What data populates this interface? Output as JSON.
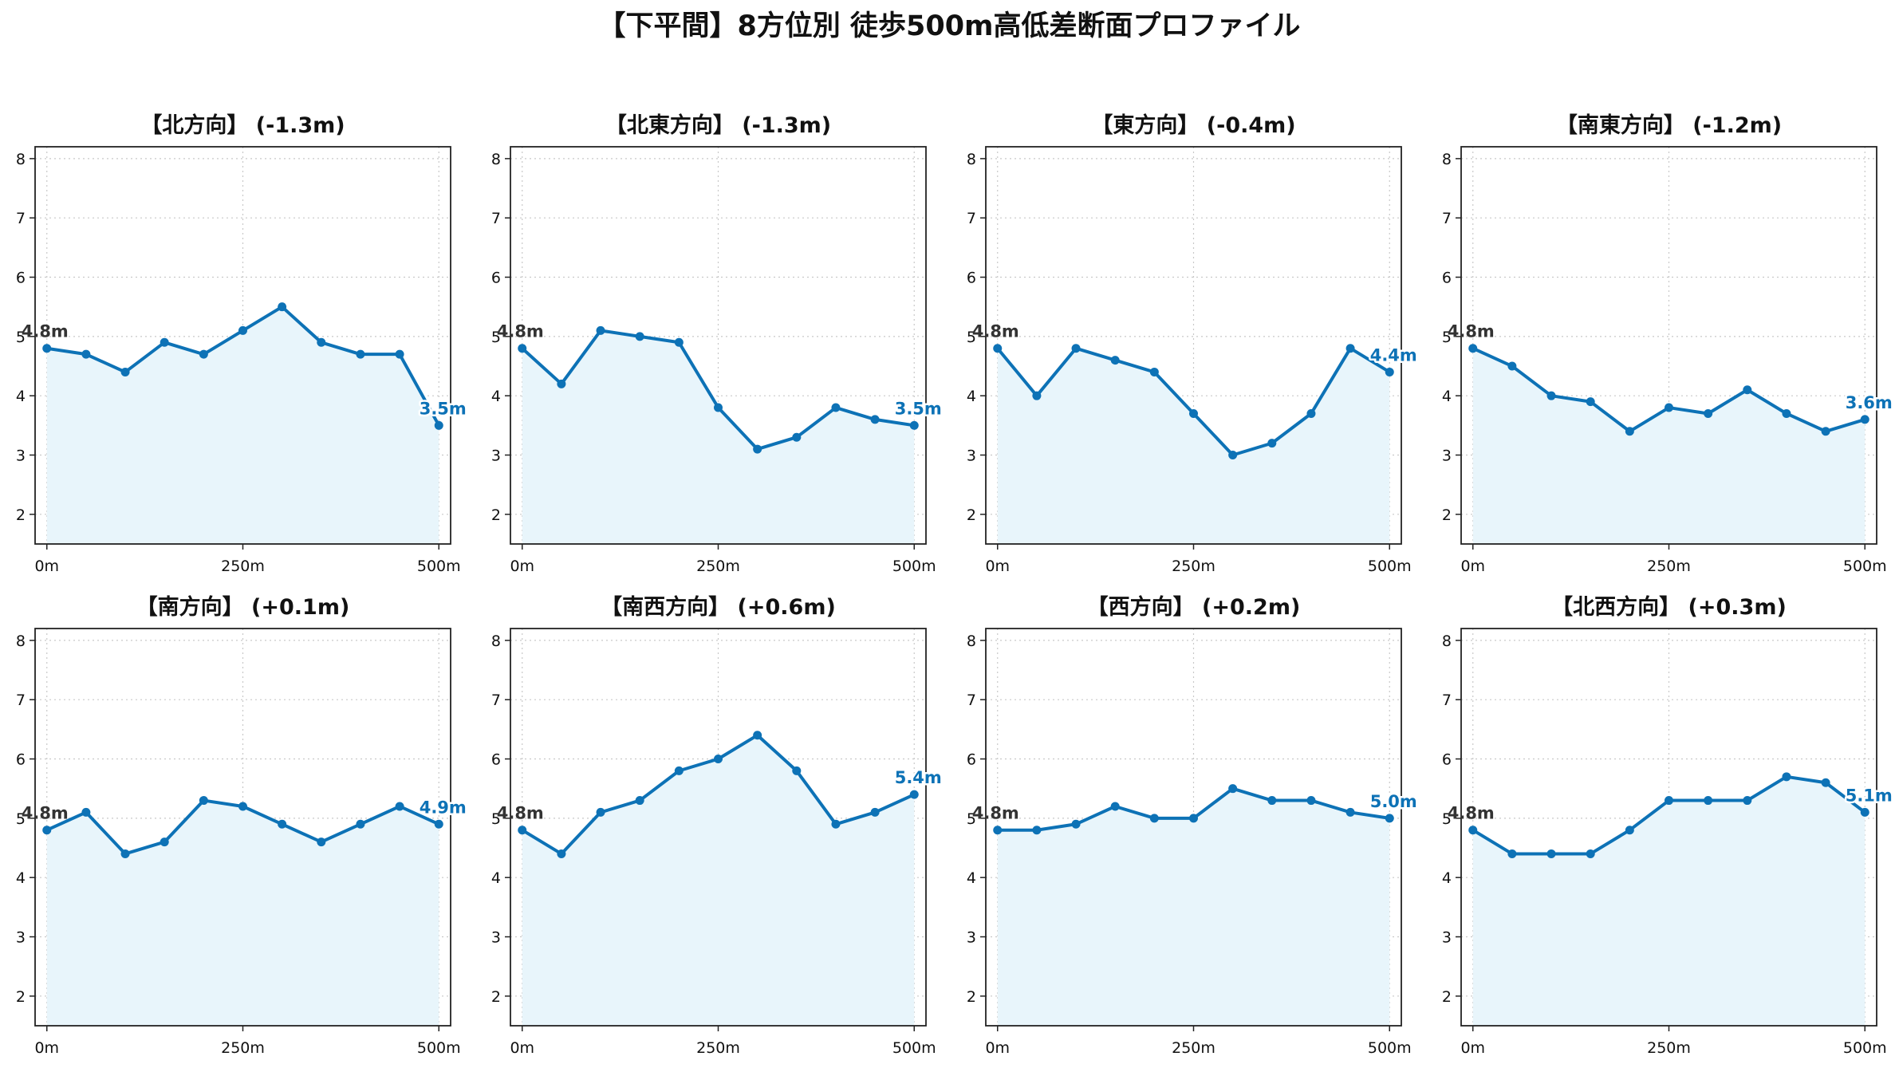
{
  "title": "【下平間】8方位別 徒歩500m高低差断面プロファイル",
  "colors": {
    "line": "#0d72b6",
    "fill": "#e8f5fb",
    "grid": "#c8c8c8",
    "axis": "#222222",
    "start_label": "#333333"
  },
  "chart_data": [
    {
      "type": "line",
      "title": "【北方向】 (-1.3m)",
      "x": [
        0,
        50,
        100,
        150,
        200,
        250,
        300,
        350,
        400,
        450,
        500
      ],
      "values": [
        4.8,
        4.7,
        4.4,
        4.9,
        4.7,
        5.1,
        5.5,
        4.9,
        4.7,
        4.7,
        3.5
      ],
      "ylim": [
        1.5,
        8.2
      ],
      "yticks": [
        "2",
        "3",
        "4",
        "5",
        "6",
        "7",
        "8"
      ],
      "xticks": [
        "0m",
        "250m",
        "500m"
      ],
      "start_label": "4.8m",
      "end_label": "3.5m",
      "grid": true,
      "area_fill": true
    },
    {
      "type": "line",
      "title": "【北東方向】 (-1.3m)",
      "x": [
        0,
        50,
        100,
        150,
        200,
        250,
        300,
        350,
        400,
        450,
        500
      ],
      "values": [
        4.8,
        4.2,
        5.1,
        5.0,
        4.9,
        3.8,
        3.1,
        3.3,
        3.8,
        3.6,
        3.5
      ],
      "ylim": [
        1.5,
        8.2
      ],
      "yticks": [
        "2",
        "3",
        "4",
        "5",
        "6",
        "7",
        "8"
      ],
      "xticks": [
        "0m",
        "250m",
        "500m"
      ],
      "start_label": "4.8m",
      "end_label": "3.5m",
      "grid": true,
      "area_fill": true
    },
    {
      "type": "line",
      "title": "【東方向】 (-0.4m)",
      "x": [
        0,
        50,
        100,
        150,
        200,
        250,
        300,
        350,
        400,
        450,
        500
      ],
      "values": [
        4.8,
        4.0,
        4.8,
        4.6,
        4.4,
        3.7,
        3.0,
        3.2,
        3.7,
        4.8,
        4.4
      ],
      "ylim": [
        1.5,
        8.2
      ],
      "yticks": [
        "2",
        "3",
        "4",
        "5",
        "6",
        "7",
        "8"
      ],
      "xticks": [
        "0m",
        "250m",
        "500m"
      ],
      "start_label": "4.8m",
      "end_label": "4.4m",
      "grid": true,
      "area_fill": true
    },
    {
      "type": "line",
      "title": "【南東方向】 (-1.2m)",
      "x": [
        0,
        50,
        100,
        150,
        200,
        250,
        300,
        350,
        400,
        450,
        500
      ],
      "values": [
        4.8,
        4.5,
        4.0,
        3.9,
        3.4,
        3.8,
        3.7,
        4.1,
        3.7,
        3.4,
        3.6
      ],
      "ylim": [
        1.5,
        8.2
      ],
      "yticks": [
        "2",
        "3",
        "4",
        "5",
        "6",
        "7",
        "8"
      ],
      "xticks": [
        "0m",
        "250m",
        "500m"
      ],
      "start_label": "4.8m",
      "end_label": "3.6m",
      "grid": true,
      "area_fill": true
    },
    {
      "type": "line",
      "title": "【南方向】 (+0.1m)",
      "x": [
        0,
        50,
        100,
        150,
        200,
        250,
        300,
        350,
        400,
        450,
        500
      ],
      "values": [
        4.8,
        5.1,
        4.4,
        4.6,
        5.3,
        5.2,
        4.9,
        4.6,
        4.9,
        5.2,
        4.9
      ],
      "ylim": [
        1.5,
        8.2
      ],
      "yticks": [
        "2",
        "3",
        "4",
        "5",
        "6",
        "7",
        "8"
      ],
      "xticks": [
        "0m",
        "250m",
        "500m"
      ],
      "start_label": "4.8m",
      "end_label": "4.9m",
      "grid": true,
      "area_fill": true
    },
    {
      "type": "line",
      "title": "【南西方向】 (+0.6m)",
      "x": [
        0,
        50,
        100,
        150,
        200,
        250,
        300,
        350,
        400,
        450,
        500
      ],
      "values": [
        4.8,
        4.4,
        5.1,
        5.3,
        5.8,
        6.0,
        6.4,
        5.8,
        4.9,
        5.1,
        5.4
      ],
      "ylim": [
        1.5,
        8.2
      ],
      "yticks": [
        "2",
        "3",
        "4",
        "5",
        "6",
        "7",
        "8"
      ],
      "xticks": [
        "0m",
        "250m",
        "500m"
      ],
      "start_label": "4.8m",
      "end_label": "5.4m",
      "grid": true,
      "area_fill": true
    },
    {
      "type": "line",
      "title": "【西方向】 (+0.2m)",
      "x": [
        0,
        50,
        100,
        150,
        200,
        250,
        300,
        350,
        400,
        450,
        500
      ],
      "values": [
        4.8,
        4.8,
        4.9,
        5.2,
        5.0,
        5.0,
        5.5,
        5.3,
        5.3,
        5.1,
        5.0
      ],
      "ylim": [
        1.5,
        8.2
      ],
      "yticks": [
        "2",
        "3",
        "4",
        "5",
        "6",
        "7",
        "8"
      ],
      "xticks": [
        "0m",
        "250m",
        "500m"
      ],
      "start_label": "4.8m",
      "end_label": "5.0m",
      "grid": true,
      "area_fill": true
    },
    {
      "type": "line",
      "title": "【北西方向】 (+0.3m)",
      "x": [
        0,
        50,
        100,
        150,
        200,
        250,
        300,
        350,
        400,
        450,
        500
      ],
      "values": [
        4.8,
        4.4,
        4.4,
        4.4,
        4.8,
        5.3,
        5.3,
        5.3,
        5.7,
        5.6,
        5.1
      ],
      "ylim": [
        1.5,
        8.2
      ],
      "yticks": [
        "2",
        "3",
        "4",
        "5",
        "6",
        "7",
        "8"
      ],
      "xticks": [
        "0m",
        "250m",
        "500m"
      ],
      "start_label": "4.8m",
      "end_label": "5.1m",
      "grid": true,
      "area_fill": true
    }
  ]
}
